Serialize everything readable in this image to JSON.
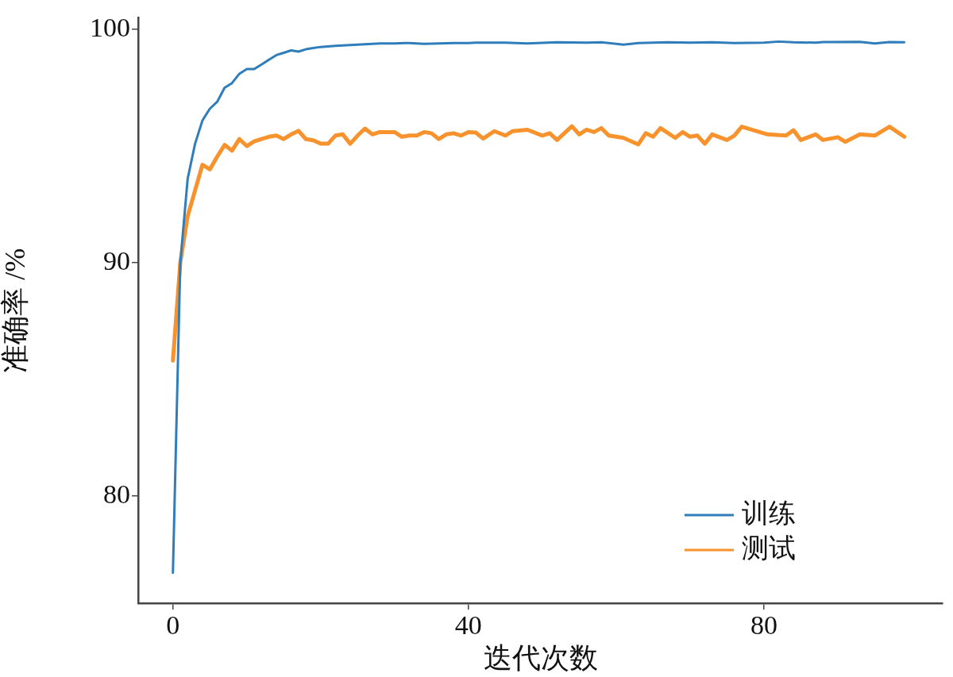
{
  "chart_data": {
    "type": "line",
    "xlabel": "迭代次数",
    "ylabel": "准确率 /%",
    "xlim": [
      -4.7,
      104.2
    ],
    "ylim": [
      75.4,
      100.5
    ],
    "xticks": [
      0,
      40,
      80
    ],
    "yticks": [
      80,
      90,
      100
    ],
    "grid": false,
    "legend": "bottom right",
    "marker": "none",
    "line_style": "solid",
    "series": [
      {
        "name": "训练",
        "color": "#2f7dba",
        "x": [
          0,
          1,
          2,
          3,
          4,
          5,
          6,
          7,
          8,
          9,
          10,
          11,
          12,
          13,
          14,
          15,
          16,
          17,
          18,
          19,
          20,
          22,
          25,
          28,
          30,
          32,
          34,
          36,
          38,
          40,
          41,
          45,
          48,
          52,
          56,
          58,
          61,
          63,
          67,
          70,
          73,
          76,
          80,
          82,
          84,
          87,
          88,
          93,
          95,
          97,
          99
        ],
        "values": [
          76.7,
          90,
          93.6,
          95.1,
          96.1,
          96.6,
          96.9,
          97.5,
          97.7,
          98.1,
          98.3,
          98.3,
          98.5,
          98.7,
          98.9,
          99,
          99.1,
          99.05,
          99.15,
          99.2,
          99.25,
          99.3,
          99.35,
          99.4,
          99.4,
          99.42,
          99.38,
          99.4,
          99.42,
          99.42,
          99.43,
          99.43,
          99.4,
          99.45,
          99.43,
          99.45,
          99.35,
          99.42,
          99.45,
          99.43,
          99.45,
          99.42,
          99.43,
          99.48,
          99.45,
          99.43,
          99.46,
          99.47,
          99.4,
          99.46,
          99.45
        ]
      },
      {
        "name": "测试",
        "color": "#f7922d",
        "x": [
          0,
          1,
          2,
          3,
          4,
          5,
          6,
          7,
          8,
          9,
          10,
          11,
          12,
          13,
          14,
          15,
          16,
          17,
          18,
          19,
          20,
          21,
          22,
          23,
          24,
          25,
          26,
          27,
          28,
          29,
          30,
          31,
          32,
          33,
          34,
          35,
          36,
          37,
          38,
          39,
          40,
          41,
          42,
          43.5,
          45,
          46,
          48,
          50,
          51,
          52,
          54,
          55,
          56,
          57,
          58,
          59,
          61,
          63,
          64,
          65,
          66,
          68,
          69,
          70,
          71,
          72,
          73,
          75,
          76,
          77,
          80.5,
          83,
          84,
          85,
          87,
          88,
          90,
          91,
          93,
          95,
          97,
          99
        ],
        "values": [
          85.8,
          90,
          92,
          93.1,
          94.2,
          94,
          94.55,
          95.05,
          94.8,
          95.3,
          95,
          95.2,
          95.3,
          95.4,
          95.45,
          95.3,
          95.5,
          95.65,
          95.3,
          95.25,
          95.1,
          95.1,
          95.45,
          95.5,
          95.1,
          95.45,
          95.75,
          95.5,
          95.6,
          95.6,
          95.6,
          95.4,
          95.45,
          95.45,
          95.6,
          95.55,
          95.3,
          95.5,
          95.55,
          95.45,
          95.6,
          95.58,
          95.32,
          95.64,
          95.45,
          95.64,
          95.7,
          95.45,
          95.55,
          95.26,
          95.85,
          95.5,
          95.7,
          95.6,
          95.77,
          95.45,
          95.35,
          95.07,
          95.55,
          95.4,
          95.77,
          95.35,
          95.6,
          95.4,
          95.45,
          95.1,
          95.5,
          95.26,
          95.45,
          95.83,
          95.5,
          95.45,
          95.68,
          95.26,
          95.5,
          95.26,
          95.38,
          95.18,
          95.5,
          95.45,
          95.83,
          95.4
        ]
      }
    ]
  }
}
